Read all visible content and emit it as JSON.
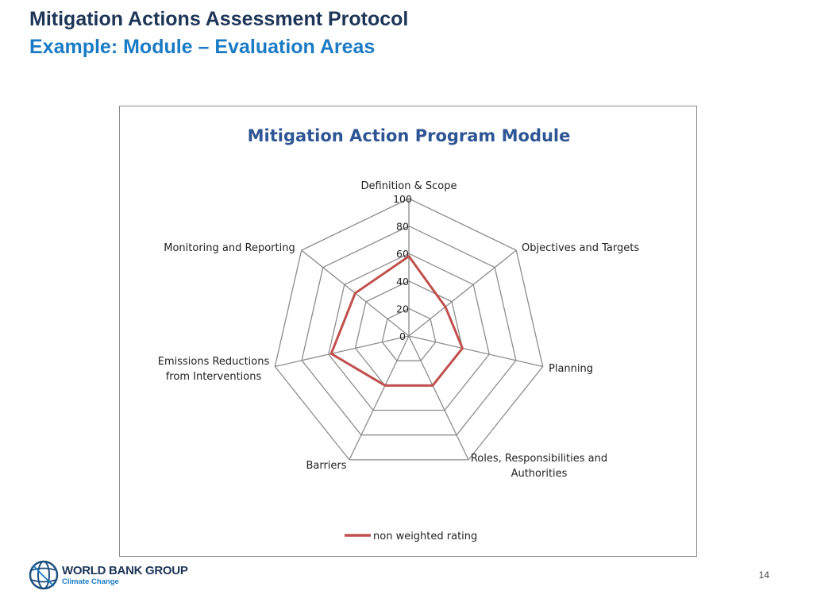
{
  "slide": {
    "title": "Mitigation Actions Assessment Protocol",
    "subtitle": "Example: Module – Evaluation Areas",
    "page_number": "14"
  },
  "logo": {
    "name": "WORLD BANK GROUP",
    "subtitle": "Climate Change"
  },
  "colors": {
    "title": "#1d3557",
    "subtitle": "#1a7bc4",
    "chart_title": "#2e5594",
    "series": "#c0504d",
    "grid": "#8c8c8c"
  },
  "chart_data": {
    "type": "radar",
    "title": "Mitigation Action Program Module",
    "categories": [
      "Definition & Scope",
      "Objectives and Targets",
      "Planning",
      "Roles, Responsibilities and Authorities",
      "Barriers",
      "Emissions Reductions from Interventions",
      "Monitoring and Reporting"
    ],
    "axis_ticks": [
      "0",
      "20",
      "40",
      "60",
      "80",
      "100"
    ],
    "rlim": [
      0,
      100
    ],
    "grid": true,
    "legend": "bottom",
    "series": [
      {
        "name": "non weighted rating",
        "values": [
          58,
          34,
          40,
          40,
          40,
          58,
          50
        ]
      }
    ]
  }
}
